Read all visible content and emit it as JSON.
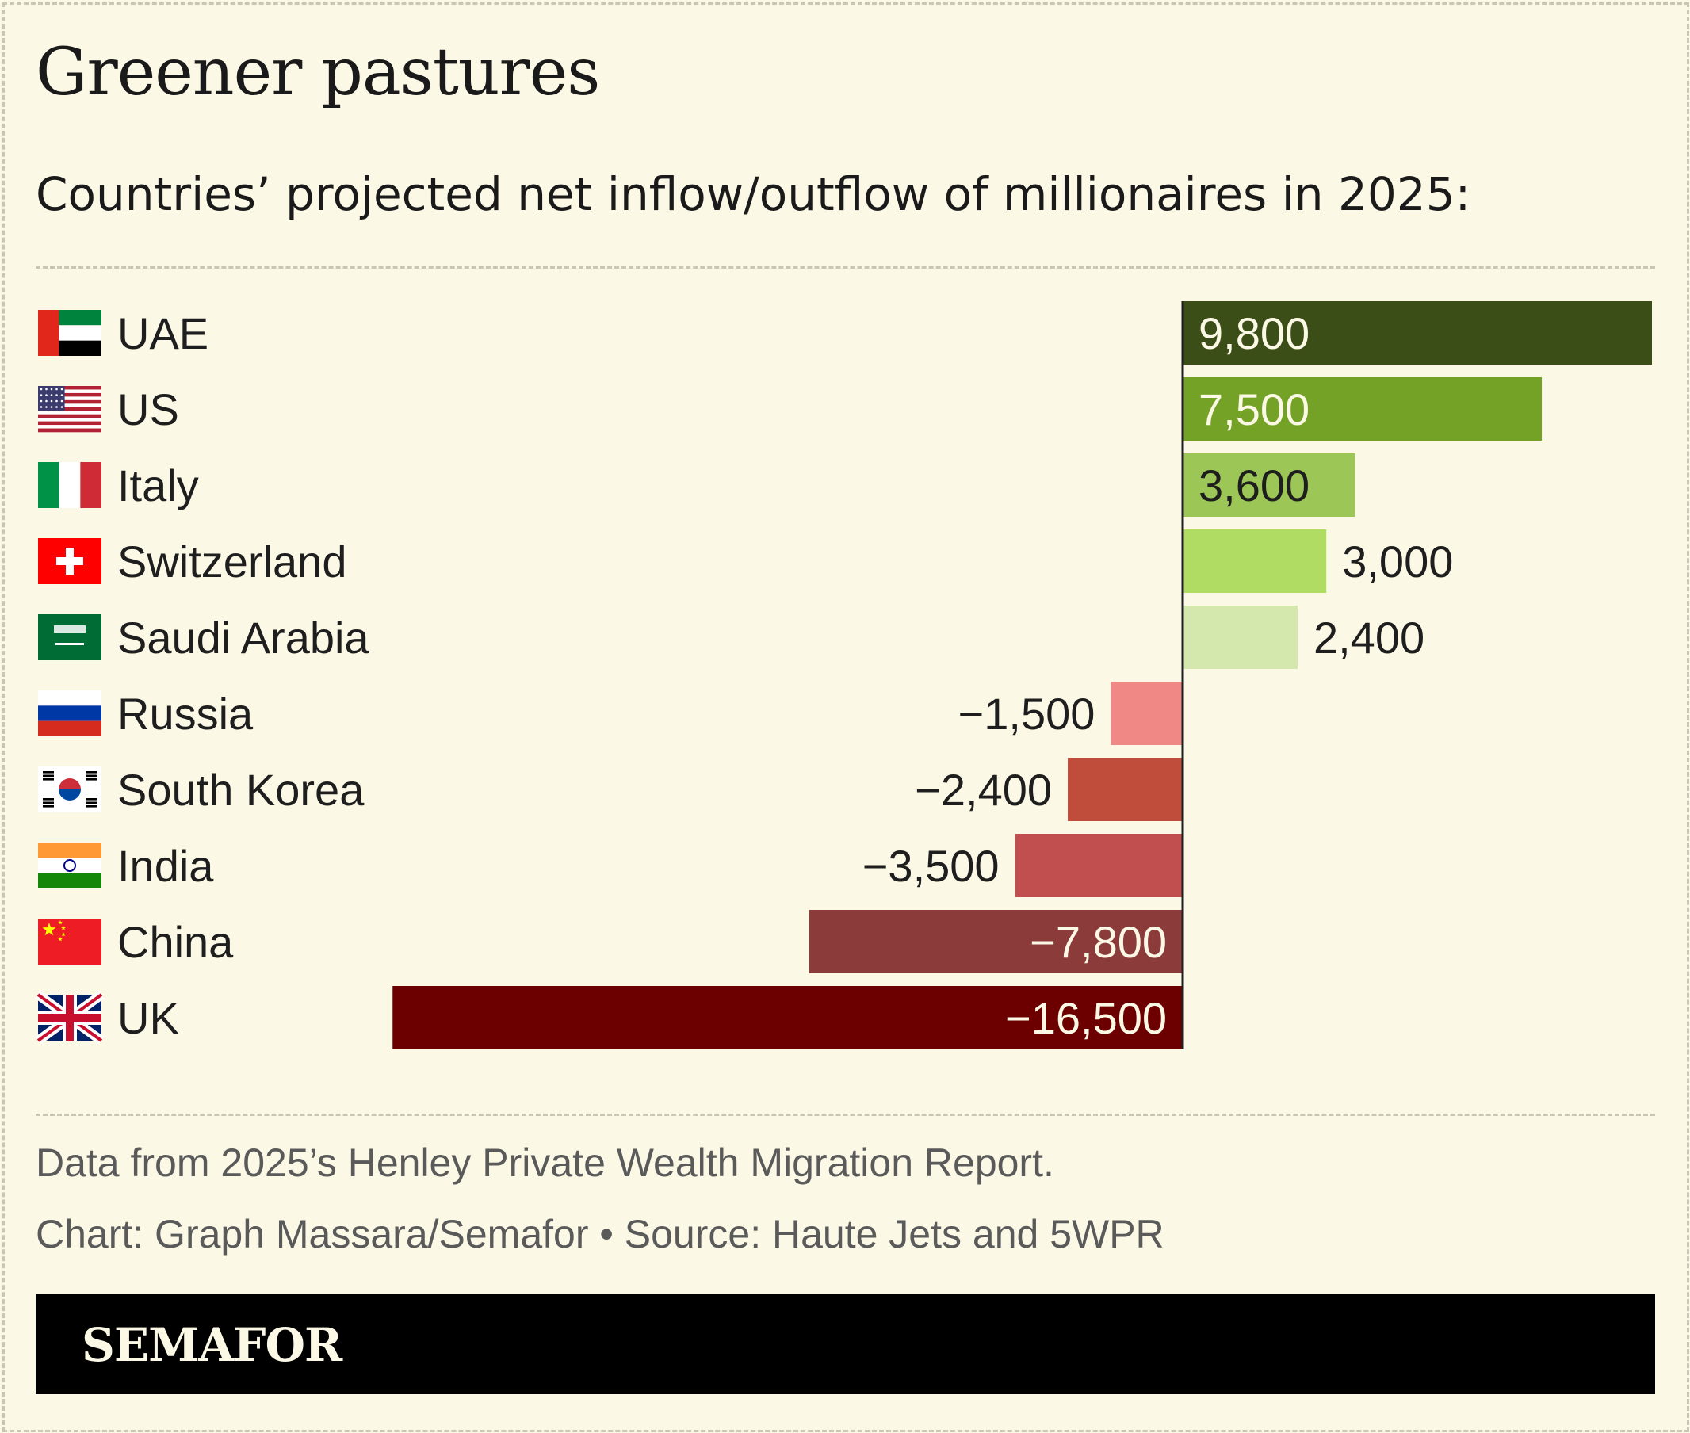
{
  "title": "Greener pastures",
  "subtitle": "Countries’ projected net inflow/outflow of millionaires in 2025:",
  "note": "Data from 2025’s Henley Private Wealth Migration Report.",
  "credit": "Chart: Graph Massara/Semafor • Source: Haute Jets and 5WPR",
  "logo": "SEMAFOR",
  "chart_data": {
    "type": "bar",
    "orientation": "horizontal",
    "categories": [
      "UAE",
      "US",
      "Italy",
      "Switzerland",
      "Saudi Arabia",
      "Russia",
      "South Korea",
      "India",
      "China",
      "UK"
    ],
    "values": [
      9800,
      7500,
      3600,
      3000,
      2400,
      -1500,
      -2400,
      -3500,
      -7800,
      -16500
    ],
    "labels": [
      "9,800",
      "7,500",
      "3,600",
      "3,000",
      "2,400",
      "−1,500",
      "−2,400",
      "−3,500",
      "−7,800",
      "−16,500"
    ],
    "bar_colors": [
      "#3b4e17",
      "#73a226",
      "#9cc757",
      "#b0dc64",
      "#d4e8ad",
      "#f08986",
      "#c04d3b",
      "#c14f50",
      "#8b3c3a",
      "#6c0000"
    ],
    "flags": [
      "uae-flag-icon",
      "us-flag-icon",
      "italy-flag-icon",
      "switzerland-flag-icon",
      "saudi-arabia-flag-icon",
      "russia-flag-icon",
      "south-korea-flag-icon",
      "india-flag-icon",
      "china-flag-icon",
      "uk-flag-icon"
    ],
    "xlim": [
      -16500,
      9800
    ],
    "grid": false,
    "legend": "none"
  }
}
